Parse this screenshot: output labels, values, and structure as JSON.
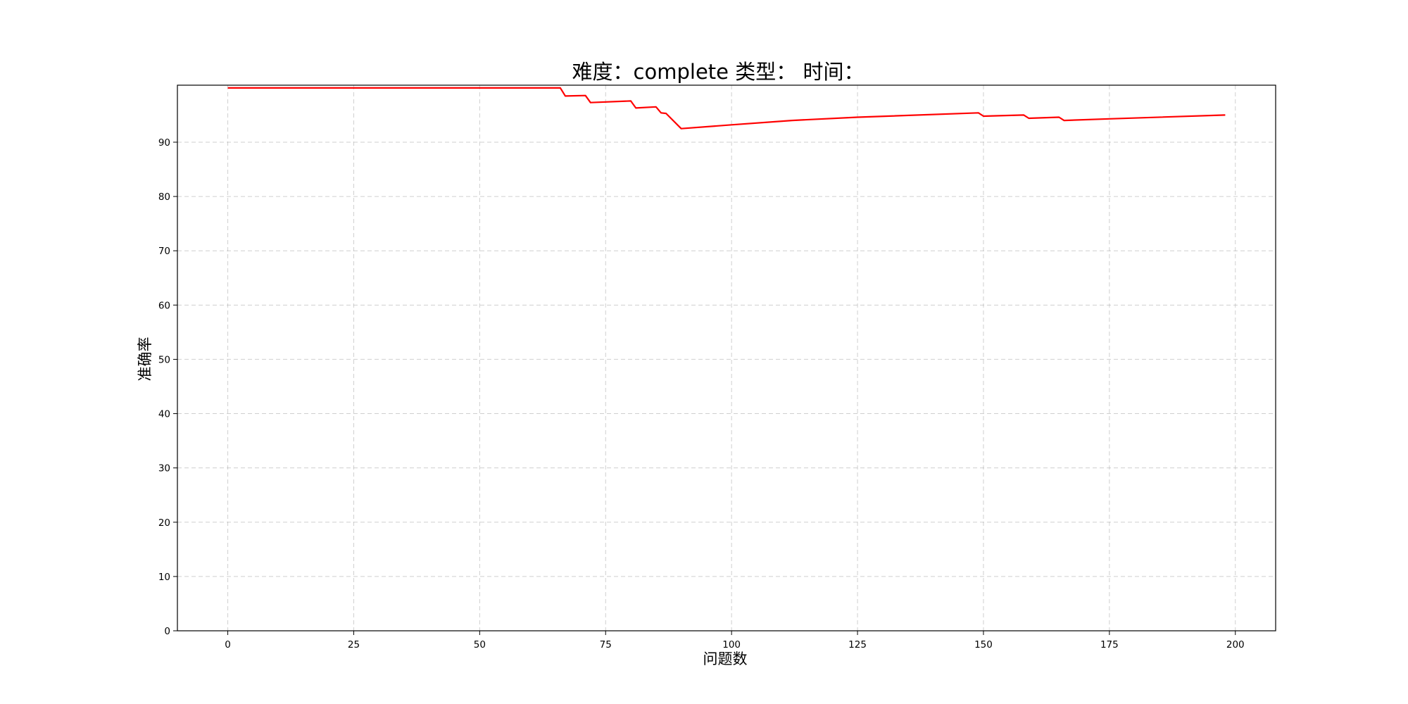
{
  "chart_data": {
    "type": "line",
    "title": "难度：complete 类型：  时间：",
    "xlabel": "问题数",
    "ylabel": "准确率",
    "xlim": [
      -10,
      208
    ],
    "ylim": [
      0,
      100.5
    ],
    "x_ticks": [
      0,
      25,
      50,
      75,
      100,
      125,
      150,
      175,
      200
    ],
    "y_ticks": [
      0,
      10,
      20,
      30,
      40,
      50,
      60,
      70,
      80,
      90
    ],
    "grid": true,
    "legend": "none",
    "series": [
      {
        "color": "#ff0000",
        "points": [
          [
            0,
            100
          ],
          [
            66,
            100
          ],
          [
            67,
            98.5
          ],
          [
            71,
            98.6
          ],
          [
            72,
            97.3
          ],
          [
            80,
            97.6
          ],
          [
            81,
            96.3
          ],
          [
            85,
            96.5
          ],
          [
            86,
            95.4
          ],
          [
            87,
            95.3
          ],
          [
            90,
            92.5
          ],
          [
            100,
            93.2
          ],
          [
            112,
            94.0
          ],
          [
            125,
            94.6
          ],
          [
            149,
            95.4
          ],
          [
            150,
            94.8
          ],
          [
            158,
            95.0
          ],
          [
            159,
            94.4
          ],
          [
            165,
            94.6
          ],
          [
            166,
            94.0
          ],
          [
            175,
            94.3
          ],
          [
            198,
            95.0
          ]
        ]
      }
    ]
  }
}
